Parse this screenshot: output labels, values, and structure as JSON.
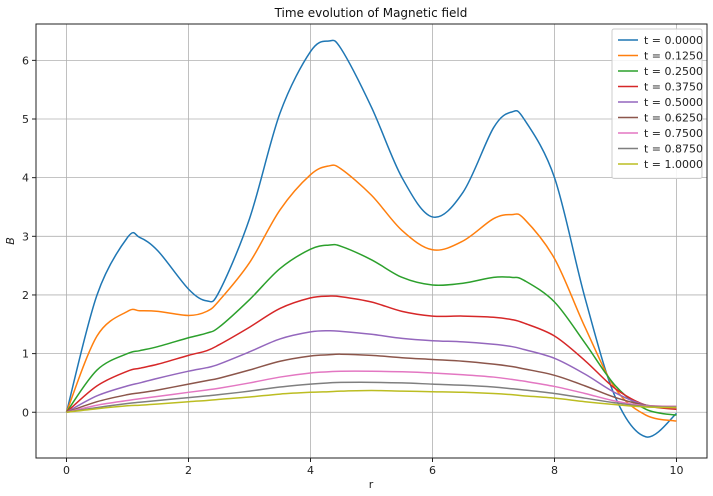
{
  "chart_data": {
    "type": "line",
    "title": "Time evolution of Magnetic field",
    "xlabel": "r",
    "ylabel": "B",
    "xlim": [
      -0.5,
      10.5
    ],
    "ylim": [
      -0.78,
      6.62
    ],
    "xticks": [
      0,
      2,
      4,
      6,
      8,
      10
    ],
    "yticks": [
      0,
      1,
      2,
      3,
      4,
      5,
      6
    ],
    "grid": true,
    "legend_position": "top-right",
    "x": [
      0,
      0.5,
      1.0,
      1.2,
      1.5,
      2.0,
      2.3,
      2.5,
      3.0,
      3.5,
      4.0,
      4.3,
      4.5,
      5.0,
      5.5,
      6.0,
      6.5,
      7.0,
      7.3,
      7.5,
      8.0,
      8.5,
      9.0,
      9.5,
      10.0
    ],
    "series": [
      {
        "name": "t = 0.0000",
        "color": "#1f77b4",
        "values": [
          0.0,
          2.0,
          2.98,
          2.98,
          2.75,
          2.1,
          1.9,
          2.05,
          3.3,
          5.1,
          6.15,
          6.33,
          6.2,
          5.2,
          4.0,
          3.33,
          3.75,
          4.85,
          5.12,
          5.0,
          4.0,
          1.95,
          0.25,
          -0.42,
          -0.02
        ]
      },
      {
        "name": "t = 0.1250",
        "color": "#ff7f0e",
        "values": [
          0.0,
          1.3,
          1.72,
          1.73,
          1.72,
          1.65,
          1.72,
          1.9,
          2.55,
          3.45,
          4.05,
          4.2,
          4.15,
          3.7,
          3.1,
          2.77,
          2.92,
          3.3,
          3.37,
          3.3,
          2.62,
          1.45,
          0.4,
          -0.05,
          -0.15
        ]
      },
      {
        "name": "t = 0.2500",
        "color": "#2ca02c",
        "values": [
          0.0,
          0.72,
          1.0,
          1.05,
          1.12,
          1.27,
          1.35,
          1.45,
          1.92,
          2.45,
          2.78,
          2.85,
          2.83,
          2.6,
          2.3,
          2.17,
          2.2,
          2.3,
          2.3,
          2.25,
          1.88,
          1.18,
          0.45,
          0.05,
          -0.05
        ]
      },
      {
        "name": "t = 0.3750",
        "color": "#d62728",
        "values": [
          0.0,
          0.45,
          0.7,
          0.75,
          0.82,
          0.97,
          1.05,
          1.15,
          1.45,
          1.77,
          1.95,
          1.98,
          1.97,
          1.88,
          1.72,
          1.64,
          1.64,
          1.62,
          1.58,
          1.52,
          1.3,
          0.88,
          0.4,
          0.12,
          0.05
        ]
      },
      {
        "name": "t = 0.5000",
        "color": "#9467bd",
        "values": [
          0.0,
          0.28,
          0.45,
          0.5,
          0.58,
          0.7,
          0.76,
          0.82,
          1.03,
          1.25,
          1.37,
          1.39,
          1.38,
          1.33,
          1.26,
          1.22,
          1.2,
          1.16,
          1.12,
          1.07,
          0.92,
          0.65,
          0.33,
          0.12,
          0.08
        ]
      },
      {
        "name": "t = 0.6250",
        "color": "#8c564b",
        "values": [
          0.0,
          0.18,
          0.3,
          0.33,
          0.38,
          0.48,
          0.54,
          0.58,
          0.72,
          0.87,
          0.96,
          0.98,
          0.99,
          0.97,
          0.93,
          0.9,
          0.87,
          0.82,
          0.78,
          0.74,
          0.63,
          0.45,
          0.25,
          0.12,
          0.1
        ]
      },
      {
        "name": "t = 0.7500",
        "color": "#e377c2",
        "values": [
          0.0,
          0.12,
          0.2,
          0.23,
          0.27,
          0.34,
          0.38,
          0.41,
          0.5,
          0.6,
          0.67,
          0.69,
          0.7,
          0.7,
          0.69,
          0.67,
          0.64,
          0.6,
          0.56,
          0.53,
          0.44,
          0.32,
          0.19,
          0.11,
          0.1
        ]
      },
      {
        "name": "t = 0.8750",
        "color": "#7f7f7f",
        "values": [
          0.0,
          0.08,
          0.15,
          0.17,
          0.2,
          0.25,
          0.28,
          0.3,
          0.36,
          0.43,
          0.48,
          0.5,
          0.51,
          0.51,
          0.5,
          0.48,
          0.46,
          0.43,
          0.4,
          0.38,
          0.32,
          0.24,
          0.16,
          0.1,
          0.09
        ]
      },
      {
        "name": "t = 1.0000",
        "color": "#bcbd22",
        "values": [
          0.0,
          0.06,
          0.11,
          0.12,
          0.14,
          0.18,
          0.2,
          0.22,
          0.26,
          0.31,
          0.34,
          0.35,
          0.36,
          0.37,
          0.36,
          0.35,
          0.34,
          0.32,
          0.3,
          0.28,
          0.24,
          0.18,
          0.13,
          0.09,
          0.08
        ]
      }
    ]
  }
}
